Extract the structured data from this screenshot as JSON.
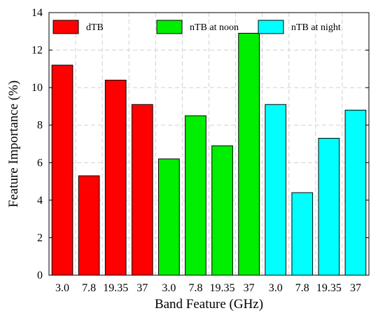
{
  "chart_data": {
    "type": "bar",
    "xlabel": "Band Feature (GHz)",
    "ylabel": "Feature Importance (%)",
    "ylim": [
      0,
      14
    ],
    "yticks": [
      0,
      2,
      4,
      6,
      8,
      10,
      12,
      14
    ],
    "grid": true,
    "legend_position": "top",
    "categories": [
      "3.0",
      "7.8",
      "19.35",
      "37",
      "3.0",
      "7.8",
      "19.35",
      "37",
      "3.0",
      "7.8",
      "19.35",
      "37"
    ],
    "series": [
      {
        "name": "dTB",
        "color": "#ff0000",
        "values": [
          11.2,
          5.3,
          10.4,
          9.1,
          null,
          null,
          null,
          null,
          null,
          null,
          null,
          null
        ]
      },
      {
        "name": "nTB at noon",
        "color": "#00ee00",
        "values": [
          null,
          null,
          null,
          null,
          6.2,
          8.5,
          6.9,
          12.9,
          null,
          null,
          null,
          null
        ]
      },
      {
        "name": "nTB at night",
        "color": "#00ffff",
        "values": [
          null,
          null,
          null,
          null,
          null,
          null,
          null,
          null,
          9.1,
          4.4,
          7.3,
          8.8
        ]
      }
    ]
  }
}
